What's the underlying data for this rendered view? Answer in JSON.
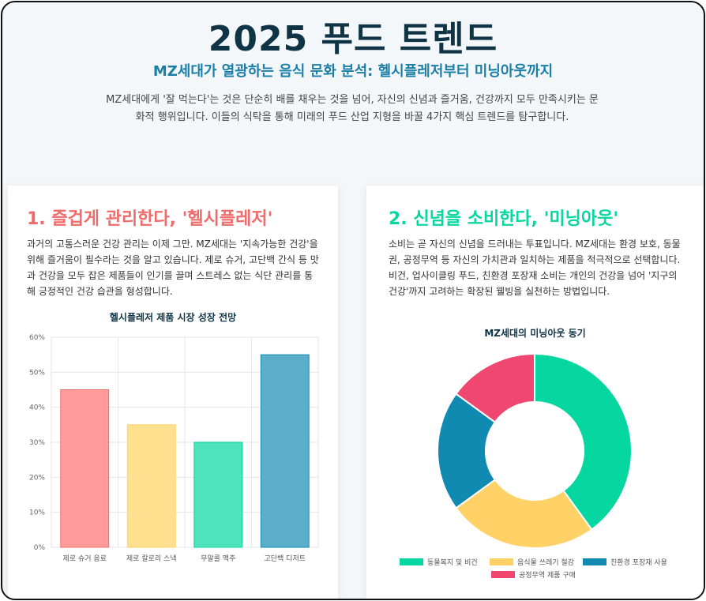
{
  "header": {
    "title": "2025 푸드 트렌드",
    "subtitle": "MZ세대가 열광하는 음식 문화 분석: 헬시플레저부터 미닝아웃까지",
    "intro": "MZ세대에게 '잘 먹는다'는 것은 단순히 배를 채우는 것을 넘어, 자신의 신념과 즐거움, 건강까지 모두 만족시키는 문화적 행위입니다. 이들의 식탁을 통해 미래의 푸드 산업 지형을 바꿀 4가지 핵심 트렌드를 탐구합니다."
  },
  "cards": [
    {
      "heading": "1. 즐겁게 관리한다, '헬시플레저'",
      "text": "과거의 고통스러운 건강 관리는 이제 그만. MZ세대는 '지속가능한 건강'을 위해 즐거움이 필수라는 것을 알고 있습니다. 제로 슈거, 고단백 간식 등 맛과 건강을 모두 잡은 제품들이 인기를 끌며 스트레스 없는 식단 관리를 통해 긍정적인 건강 습관을 형성합니다."
    },
    {
      "heading": "2. 신념을 소비한다, '미닝아웃'",
      "text": "소비는 곧 자신의 신념을 드러내는 투표입니다. MZ세대는 환경 보호, 동물권, 공정무역 등 자신의 가치관과 일치하는 제품을 적극적으로 선택합니다. 비건, 업사이클링 푸드, 친환경 포장재 소비는 개인의 건강을 넘어 '지구의 건강'까지 고려하는 확장된 웰빙을 실천하는 방법입니다."
    }
  ],
  "chart_data": [
    {
      "type": "bar",
      "title": "헬시플레저 제품 시장 성장 전망",
      "categories": [
        "제로 슈거 음료",
        "제로 칼로리 스낵",
        "무알콜 맥주",
        "고단백 디저트"
      ],
      "values": [
        45,
        35,
        30,
        55
      ],
      "ylim": [
        0,
        60
      ],
      "yticks": [
        "0%",
        "10%",
        "20%",
        "30%",
        "40%",
        "50%",
        "60%"
      ],
      "colors": [
        "#ff9b9b",
        "#ffe08f",
        "#4fe3bd",
        "#5aaec9"
      ],
      "borders": [
        "#ef6b6b",
        "#ffd166",
        "#06d6a0",
        "#118ab2"
      ],
      "grid": true
    },
    {
      "type": "pie",
      "title": "MZ세대의 미닝아웃 동기",
      "labels": [
        "동물복지 및 비건",
        "음식물 쓰레기 절감",
        "친환경 포장재 사용",
        "공정무역 제품 구매"
      ],
      "values": [
        40,
        25,
        20,
        15
      ],
      "colors": [
        "#06d6a0",
        "#ffd166",
        "#118ab2",
        "#ef476f"
      ],
      "legend": "bottom"
    }
  ]
}
